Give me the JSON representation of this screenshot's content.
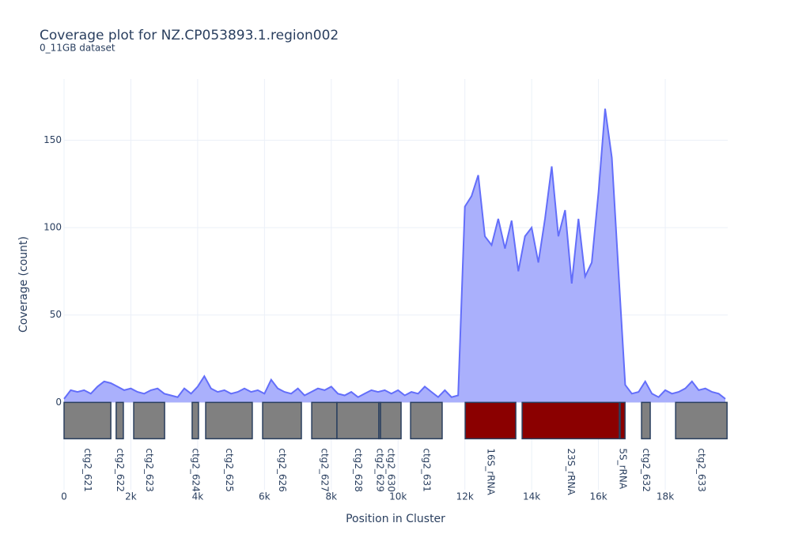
{
  "chart_data": {
    "type": "area",
    "title": "Coverage plot for NZ.CP053893.1.region002",
    "subtitle": "0_11GB dataset",
    "x_label": "Position in Cluster",
    "y_label": "Coverage (count)",
    "color": "#636efa",
    "fill_color": "#aab0fc",
    "grid": true,
    "xlim": [
      0,
      19870
    ],
    "ylim": [
      -50,
      185
    ],
    "xticks": [
      0,
      {
        "value": 2000,
        "label": "2k"
      },
      {
        "value": 4000,
        "label": "4k"
      },
      {
        "value": 6000,
        "label": "6k"
      },
      {
        "value": 8000,
        "label": "8k"
      },
      {
        "value": 10000,
        "label": "10k"
      },
      {
        "value": 12000,
        "label": "12k"
      },
      {
        "value": 14000,
        "label": "14k"
      },
      {
        "value": 16000,
        "label": "16k"
      },
      {
        "value": 18000,
        "label": "18k"
      }
    ],
    "yticks": [
      0,
      50,
      100,
      150
    ],
    "x": [
      0,
      200,
      400,
      600,
      800,
      1000,
      1200,
      1400,
      1600,
      1800,
      2000,
      2200,
      2400,
      2600,
      2800,
      3000,
      3200,
      3400,
      3600,
      3800,
      4000,
      4200,
      4400,
      4600,
      4800,
      5000,
      5200,
      5400,
      5600,
      5800,
      6000,
      6200,
      6400,
      6600,
      6800,
      7000,
      7200,
      7400,
      7600,
      7800,
      8000,
      8200,
      8400,
      8600,
      8800,
      9000,
      9200,
      9400,
      9600,
      9800,
      10000,
      10200,
      10400,
      10600,
      10800,
      11000,
      11200,
      11400,
      11600,
      11800,
      12000,
      12200,
      12400,
      12600,
      12800,
      13000,
      13200,
      13400,
      13600,
      13800,
      14000,
      14200,
      14400,
      14600,
      14800,
      15000,
      15200,
      15400,
      15600,
      15800,
      16000,
      16200,
      16400,
      16600,
      16800,
      17000,
      17200,
      17400,
      17600,
      17800,
      18000,
      18200,
      18400,
      18600,
      18800,
      19000,
      19200,
      19400,
      19600,
      19800
    ],
    "values": [
      2,
      7,
      6,
      7,
      5,
      9,
      12,
      11,
      9,
      7,
      8,
      6,
      5,
      7,
      8,
      5,
      4,
      3,
      8,
      5,
      9,
      15,
      8,
      6,
      7,
      5,
      6,
      8,
      6,
      7,
      5,
      13,
      8,
      6,
      5,
      8,
      4,
      6,
      8,
      7,
      9,
      5,
      4,
      6,
      3,
      5,
      7,
      6,
      7,
      5,
      7,
      4,
      6,
      5,
      9,
      6,
      3,
      7,
      3,
      4,
      112,
      118,
      130,
      95,
      90,
      105,
      88,
      104,
      75,
      95,
      100,
      80,
      105,
      135,
      95,
      110,
      68,
      105,
      72,
      80,
      120,
      168,
      140,
      75,
      10,
      5,
      6,
      12,
      5,
      3,
      7,
      5,
      6,
      8,
      12,
      7,
      8,
      6,
      5,
      2
    ],
    "genes": [
      {
        "label": "ctg2_621",
        "start": 0,
        "end": 1400,
        "color": "#808080"
      },
      {
        "label": "ctg2_622",
        "start": 1560,
        "end": 1775,
        "color": "#808080"
      },
      {
        "label": "ctg2_623",
        "start": 2085,
        "end": 3010,
        "color": "#808080"
      },
      {
        "label": "ctg2_624",
        "start": 3835,
        "end": 4025,
        "color": "#808080"
      },
      {
        "label": "ctg2_625",
        "start": 4240,
        "end": 5635,
        "color": "#808080"
      },
      {
        "label": "ctg2_626",
        "start": 5945,
        "end": 7105,
        "color": "#808080"
      },
      {
        "label": "ctg2_627",
        "start": 7415,
        "end": 8170,
        "color": "#808080"
      },
      {
        "label": "ctg2_628",
        "start": 8170,
        "end": 9425,
        "color": "#808080"
      },
      {
        "label": "ctg2_629",
        "start": 9425,
        "end": 9475,
        "color": "#808080"
      },
      {
        "label": "ctg2_630",
        "start": 9475,
        "end": 10090,
        "color": "#808080"
      },
      {
        "label": "ctg2_631",
        "start": 10375,
        "end": 11320,
        "color": "#808080"
      },
      {
        "label": "16S_rRNA",
        "start": 12010,
        "end": 13525,
        "color": "#8b0000"
      },
      {
        "label": "23S_rRNA",
        "start": 13715,
        "end": 16625,
        "color": "#8b0000"
      },
      {
        "label": "5S_rRNA",
        "start": 16650,
        "end": 16795,
        "color": "#8b0000"
      },
      {
        "label": "ctg2_632",
        "start": 17290,
        "end": 17550,
        "color": "#808080"
      },
      {
        "label": "ctg2_633",
        "start": 18310,
        "end": 19850,
        "color": "#808080"
      }
    ]
  }
}
